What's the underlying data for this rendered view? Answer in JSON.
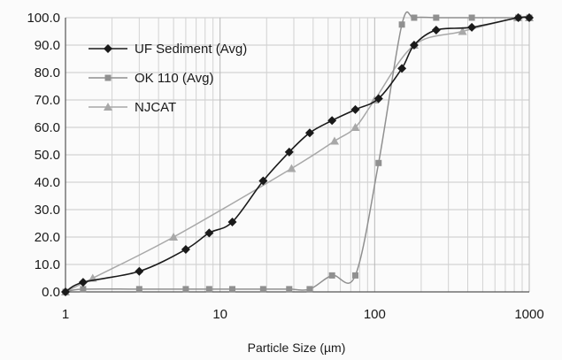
{
  "chart_data": {
    "type": "line",
    "title": "",
    "xlabel": "Particle Size (µm)",
    "ylabel": "",
    "x_scale": "log",
    "xlim": [
      1,
      1000
    ],
    "ylim": [
      0,
      100
    ],
    "x_tick_labels": [
      "1",
      "10",
      "100",
      "1000"
    ],
    "y_tick_labels": [
      "0.0",
      "10.0",
      "20.0",
      "30.0",
      "40.0",
      "50.0",
      "60.0",
      "70.0",
      "80.0",
      "90.0",
      "100.0"
    ],
    "grid": true,
    "legend_position": "top-left",
    "series": [
      {
        "name": "UF Sediment (Avg)",
        "color": "#1a1a1a",
        "marker": "diamond",
        "x": [
          1.0,
          1.3,
          3.0,
          6.0,
          8.5,
          12,
          19,
          28,
          38,
          53,
          75,
          106,
          150,
          180,
          250,
          425,
          850,
          1000
        ],
        "y": [
          0.0,
          3.5,
          7.5,
          15.5,
          21.5,
          25.5,
          40.5,
          51.0,
          58.0,
          62.5,
          66.5,
          70.5,
          81.5,
          90.0,
          95.5,
          96.5,
          100.0,
          100.0
        ]
      },
      {
        "name": "OK 110 (Avg)",
        "color": "#909090",
        "marker": "square",
        "x": [
          1.0,
          1.3,
          3.0,
          6.0,
          8.5,
          12,
          19,
          28,
          38,
          53,
          75,
          106,
          150,
          180,
          250,
          425,
          850,
          1000
        ],
        "y": [
          0.0,
          1.0,
          1.0,
          1.0,
          1.0,
          1.0,
          1.0,
          1.0,
          1.0,
          6.0,
          6.0,
          47.0,
          97.5,
          100.0,
          100.0,
          100.0,
          100.0,
          100.0
        ]
      },
      {
        "name": "NJCAT",
        "color": "#a8a8a8",
        "marker": "triangle",
        "x": [
          1.0,
          1.5,
          5.0,
          29,
          55,
          75,
          100,
          180,
          370,
          840,
          1000
        ],
        "y": [
          0.0,
          5.0,
          20.0,
          45.0,
          55.0,
          60.0,
          70.0,
          90.0,
          95.0,
          100.0,
          100.0
        ]
      }
    ]
  }
}
